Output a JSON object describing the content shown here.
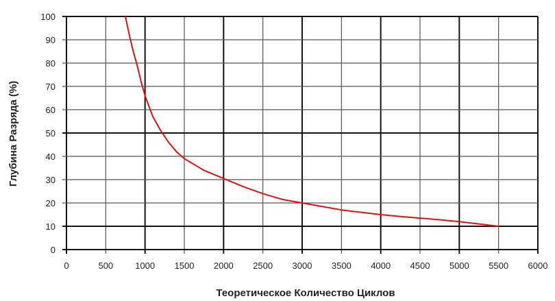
{
  "chart_data": {
    "type": "line",
    "title": "",
    "xlabel": "Теоретическое Количество Циклов",
    "ylabel": "Глубина Разряда (%)",
    "xlim": [
      0,
      6000
    ],
    "ylim": [
      0,
      100
    ],
    "x_ticks": [
      0,
      500,
      1000,
      1500,
      2000,
      2500,
      3000,
      3500,
      4000,
      4500,
      5000,
      5500,
      6000
    ],
    "y_ticks": [
      0,
      10,
      20,
      30,
      40,
      50,
      60,
      70,
      80,
      90,
      100
    ],
    "x_tick_labels": [
      "0",
      "500",
      "1000",
      "1500",
      "2000",
      "2500",
      "3000",
      "3500",
      "4000",
      "4500",
      "5000",
      "5500",
      "6000"
    ],
    "y_tick_labels": [
      "0",
      "10",
      "20",
      "30",
      "40",
      "50",
      "60",
      "70",
      "80",
      "90",
      "100"
    ],
    "grid": true,
    "legend": "none",
    "colors": {
      "line": "#dd1111",
      "grid_minor": "#555555",
      "grid_major": "#111111"
    },
    "series": [
      {
        "values_x": [
          750,
          800,
          850,
          900,
          950,
          1000,
          1100,
          1200,
          1300,
          1400,
          1500,
          1750,
          2000,
          2250,
          2500,
          2750,
          3000,
          3250,
          3500,
          3750,
          4000,
          4250,
          4500,
          4750,
          5000,
          5250,
          5500
        ],
        "values_y": [
          100,
          92,
          85,
          79,
          72,
          66,
          57,
          51,
          46,
          42,
          39,
          34,
          30.5,
          27,
          24,
          21.5,
          20,
          18.5,
          17,
          16,
          15,
          14.2,
          13.5,
          12.8,
          12,
          11,
          10
        ]
      }
    ]
  }
}
